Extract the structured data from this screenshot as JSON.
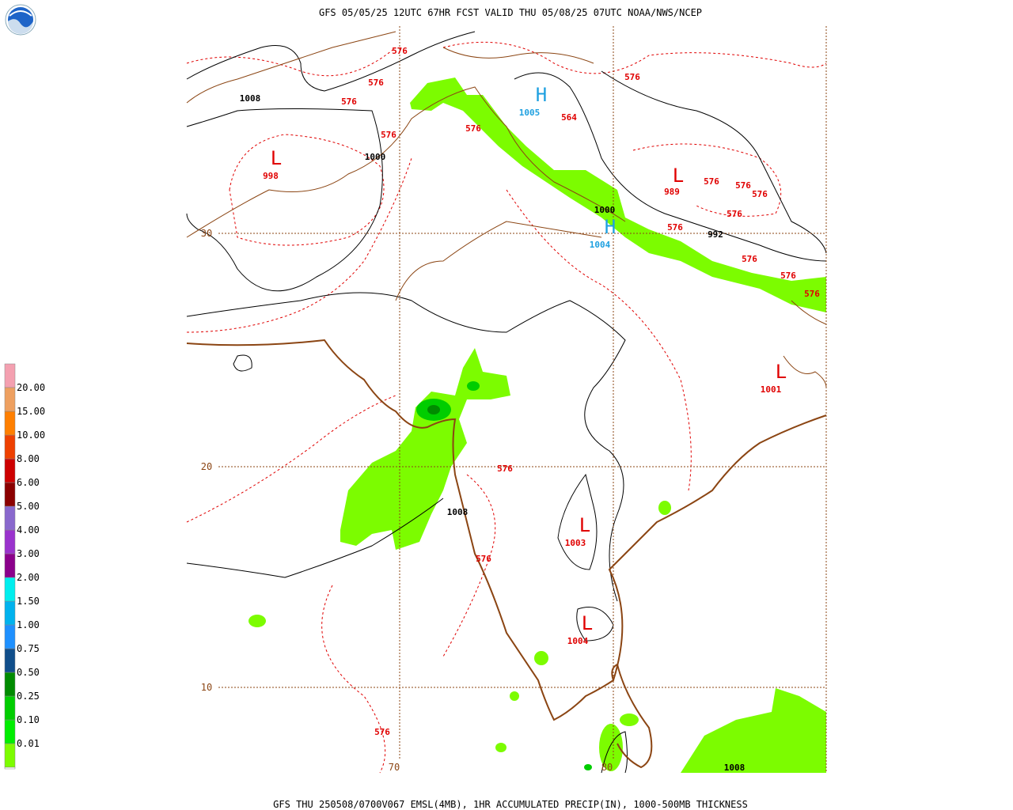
{
  "header": {
    "title": "GFS 05/05/25 12UTC 67HR FCST VALID THU 05/08/25 07UTC NOAA/NWS/NCEP"
  },
  "footer": {
    "text": "GFS THU 250508/0700V067 EMSL(4MB), 1HR ACCUMULATED PRECIP(IN), 1000-500MB THICKNESS"
  },
  "legend": {
    "levels": [
      {
        "label": "0.01",
        "color": "#7cfc00"
      },
      {
        "label": "0.10",
        "color": "#00ee00"
      },
      {
        "label": "0.25",
        "color": "#00cd00"
      },
      {
        "label": "0.50",
        "color": "#008b00"
      },
      {
        "label": "0.75",
        "color": "#104e8b"
      },
      {
        "label": "1.00",
        "color": "#1e90ff"
      },
      {
        "label": "1.50",
        "color": "#00b2ee"
      },
      {
        "label": "2.00",
        "color": "#00eeee"
      },
      {
        "label": "3.00",
        "color": "#8b008b"
      },
      {
        "label": "4.00",
        "color": "#9a32cd"
      },
      {
        "label": "5.00",
        "color": "#8968cd"
      },
      {
        "label": "6.00",
        "color": "#8b0000"
      },
      {
        "label": "8.00",
        "color": "#cd0000"
      },
      {
        "label": "10.00",
        "color": "#ee4000"
      },
      {
        "label": "15.00",
        "color": "#ff7f00"
      },
      {
        "label": "20.00",
        "color": "#eea060"
      }
    ],
    "top_color": "#f4a0b0"
  },
  "map": {
    "grid_labels": [
      "30",
      "20",
      "10",
      "70",
      "80"
    ],
    "labels": [
      {
        "text": "576",
        "color": "#e00000"
      },
      {
        "text": "576",
        "color": "#e00000"
      },
      {
        "text": "576",
        "color": "#e00000"
      },
      {
        "text": "1008",
        "color": "#000000"
      },
      {
        "text": "576",
        "color": "#e00000"
      },
      {
        "text": "1000",
        "color": "#000000"
      },
      {
        "text": "L",
        "color": "#e00000"
      },
      {
        "text": "998",
        "color": "#e00000"
      },
      {
        "text": "H",
        "color": "#1ea0e0"
      },
      {
        "text": "1005",
        "color": "#1ea0e0"
      },
      {
        "text": "564",
        "color": "#e00000"
      },
      {
        "text": "576",
        "color": "#e00000"
      },
      {
        "text": "576",
        "color": "#e00000"
      },
      {
        "text": "L",
        "color": "#e00000"
      },
      {
        "text": "989",
        "color": "#e00000"
      },
      {
        "text": "576",
        "color": "#e00000"
      },
      {
        "text": "576",
        "color": "#e00000"
      },
      {
        "text": "576",
        "color": "#e00000"
      },
      {
        "text": "576",
        "color": "#e00000"
      },
      {
        "text": "1000",
        "color": "#000000"
      },
      {
        "text": "H",
        "color": "#1ea0e0"
      },
      {
        "text": "1004",
        "color": "#1ea0e0"
      },
      {
        "text": "576",
        "color": "#e00000"
      },
      {
        "text": "992",
        "color": "#000000"
      },
      {
        "text": "576",
        "color": "#e00000"
      },
      {
        "text": "576",
        "color": "#e00000"
      },
      {
        "text": "576",
        "color": "#e00000"
      },
      {
        "text": "L",
        "color": "#e00000"
      },
      {
        "text": "1001",
        "color": "#e00000"
      },
      {
        "text": "576",
        "color": "#e00000"
      },
      {
        "text": "1008",
        "color": "#000000"
      },
      {
        "text": "L",
        "color": "#e00000"
      },
      {
        "text": "1003",
        "color": "#e00000"
      },
      {
        "text": "576",
        "color": "#e00000"
      },
      {
        "text": "L",
        "color": "#e00000"
      },
      {
        "text": "1004",
        "color": "#e00000"
      },
      {
        "text": "576",
        "color": "#e00000"
      },
      {
        "text": "1008",
        "color": "#000000"
      }
    ]
  }
}
